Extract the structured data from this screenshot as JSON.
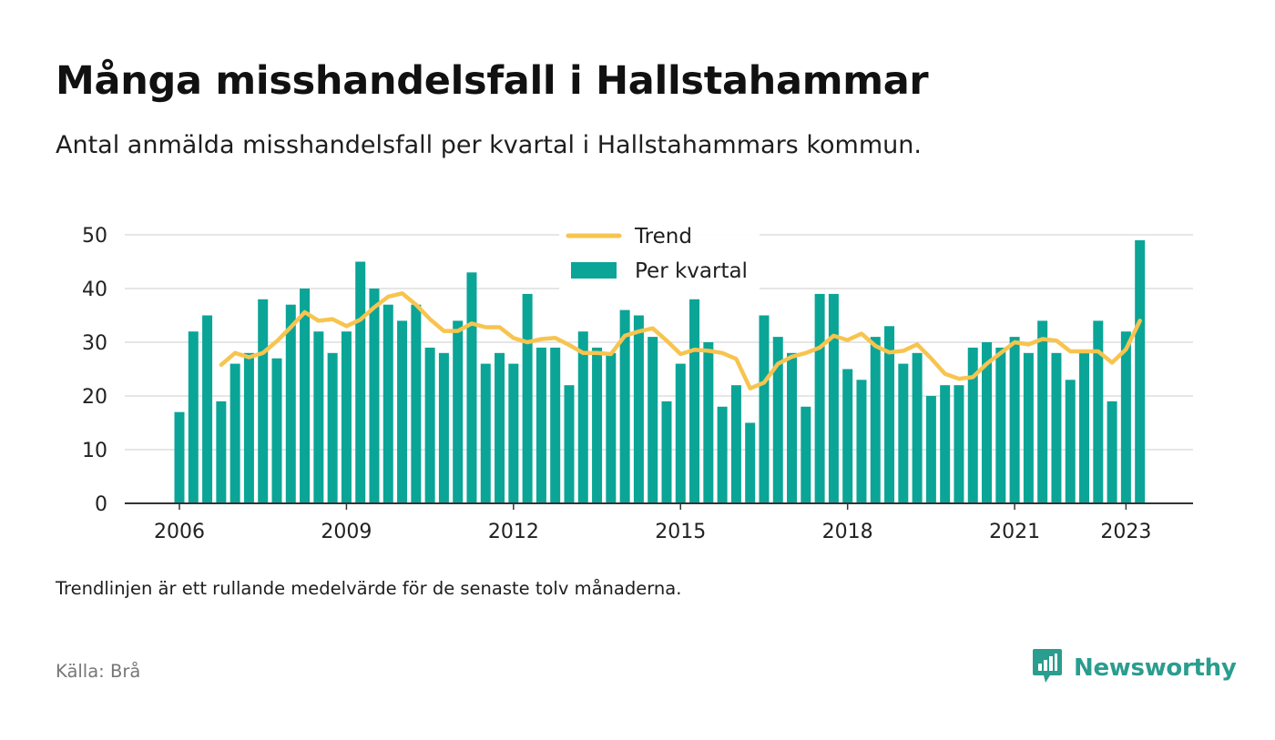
{
  "header": {
    "title": "Många misshandelsfall i Hallstahammar",
    "subtitle": "Antal anmälda misshandelsfall per kvartal i Hallstahammars kommun."
  },
  "footer": {
    "note": "Trendlinjen är ett rullande medelvärde för de senaste tolv månaderna.",
    "source": "Källa: Brå",
    "brand": "Newsworthy"
  },
  "colors": {
    "bar": "#0aa597",
    "trend": "#f7c44f",
    "grid": "#dddddd",
    "axis": "#333333",
    "brand": "#2a9d8f"
  },
  "chart_data": {
    "type": "bar",
    "x_unit": "quarter",
    "start": "2006 Q1",
    "xlim": [
      "2006 Q1",
      "2023 Q2"
    ],
    "ylim": [
      0,
      50
    ],
    "yticks": [
      0,
      10,
      20,
      30,
      40,
      50
    ],
    "xticks": [
      "2006",
      "2009",
      "2012",
      "2015",
      "2018",
      "2021",
      "2023"
    ],
    "grid": true,
    "legend_position": "top-center",
    "series": [
      {
        "name": "Per kvartal",
        "kind": "bar",
        "values": [
          17,
          32,
          35,
          19,
          26,
          28,
          38,
          27,
          37,
          40,
          32,
          28,
          32,
          45,
          40,
          37,
          34,
          37,
          29,
          28,
          34,
          43,
          26,
          28,
          26,
          39,
          29,
          29,
          22,
          32,
          29,
          28,
          36,
          35,
          31,
          19,
          26,
          38,
          30,
          18,
          22,
          15,
          35,
          31,
          28,
          18,
          39,
          39,
          25,
          23,
          31,
          33,
          26,
          28,
          20,
          22,
          22,
          29,
          30,
          29,
          31,
          28,
          34,
          28,
          23,
          28,
          34,
          19,
          32,
          49
        ]
      },
      {
        "name": "Trend",
        "kind": "line",
        "start_index": 3,
        "values": [
          25.8,
          28.0,
          27.2,
          28.0,
          30.2,
          32.8,
          35.6,
          34.0,
          34.3,
          33.0,
          34.2,
          36.5,
          38.5,
          39.1,
          37.0,
          34.3,
          32.1,
          32.1,
          33.5,
          32.8,
          32.8,
          30.8,
          30.0,
          30.6,
          30.8,
          29.5,
          28.0,
          28.0,
          27.8,
          31.2,
          32.0,
          32.6,
          30.3,
          27.8,
          28.6,
          28.4,
          28.0,
          26.9,
          21.4,
          22.5,
          26.0,
          27.3,
          28.0,
          29.0,
          31.2,
          30.4,
          31.6,
          29.3,
          28.1,
          28.4,
          29.6,
          27.0,
          24.1,
          23.2,
          23.5,
          26.0,
          28.0,
          30.0,
          29.6,
          30.6,
          30.3,
          28.3,
          28.3,
          28.3,
          26.2,
          28.7,
          34.0
        ]
      }
    ]
  }
}
